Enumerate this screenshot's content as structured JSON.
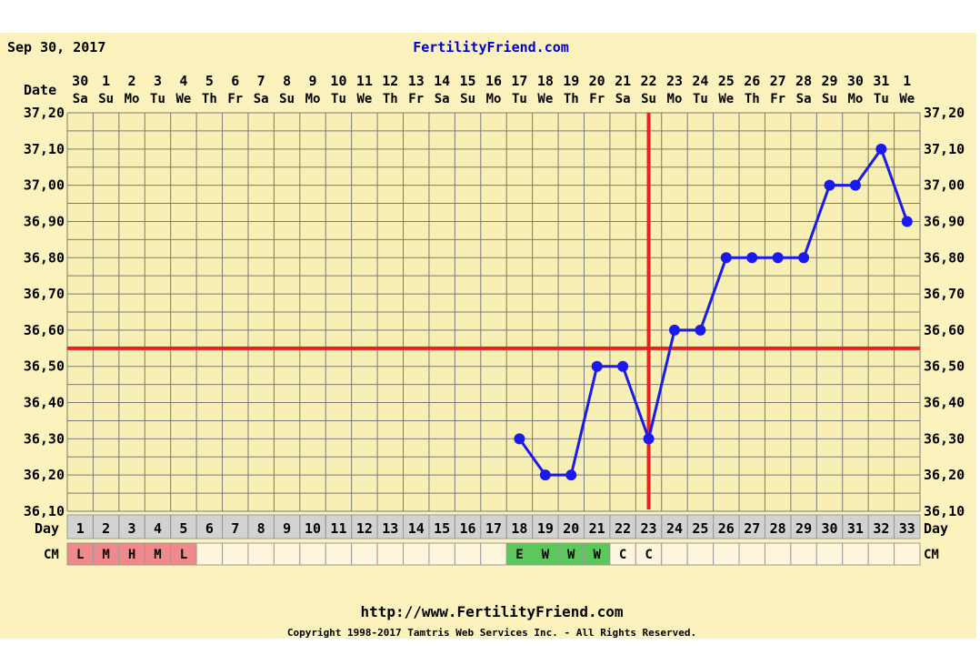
{
  "header": {
    "date": "Sep 30, 2017",
    "site_title": "FertilityFriend.com"
  },
  "footer": {
    "url": "http://www.FertilityFriend.com",
    "copyright": "Copyright 1998-2017 Tamtris Web Services Inc. - All Rights Reserved."
  },
  "row_labels": {
    "date": "Date",
    "day": "Day",
    "cm": "CM"
  },
  "colors": {
    "background": "#fbf2bd",
    "plot_background": "#f7efb3",
    "grid": "#7a7a7a",
    "series": "#1a1aee",
    "coverline": "#e8231e",
    "day_row": "#d2d2d2",
    "cm_empty": "#fdf6dc",
    "cm_period": "#f08a8a",
    "cm_wet": "#5cc85c"
  },
  "chart_data": {
    "type": "line",
    "dates": [
      "30",
      "1",
      "2",
      "3",
      "4",
      "5",
      "6",
      "7",
      "8",
      "9",
      "10",
      "11",
      "12",
      "13",
      "14",
      "15",
      "16",
      "17",
      "18",
      "19",
      "20",
      "21",
      "22",
      "23",
      "24",
      "25",
      "26",
      "27",
      "28",
      "29",
      "30",
      "31",
      "1"
    ],
    "weekdays": [
      "Sa",
      "Su",
      "Mo",
      "Tu",
      "We",
      "Th",
      "Fr",
      "Sa",
      "Su",
      "Mo",
      "Tu",
      "We",
      "Th",
      "Fr",
      "Sa",
      "Su",
      "Mo",
      "Tu",
      "We",
      "Th",
      "Fr",
      "Sa",
      "Su",
      "Mo",
      "Tu",
      "We",
      "Th",
      "Fr",
      "Sa",
      "Su",
      "Mo",
      "Tu",
      "We"
    ],
    "days": [
      1,
      2,
      3,
      4,
      5,
      6,
      7,
      8,
      9,
      10,
      11,
      12,
      13,
      14,
      15,
      16,
      17,
      18,
      19,
      20,
      21,
      22,
      23,
      24,
      25,
      26,
      27,
      28,
      29,
      30,
      31,
      32,
      33
    ],
    "y_ticks": [
      "37,20",
      "37,10",
      "37,00",
      "36,90",
      "36,80",
      "36,70",
      "36,60",
      "36,50",
      "36,40",
      "36,30",
      "36,20",
      "36,10"
    ],
    "ylim": [
      36.1,
      37.2
    ],
    "temperatures": [
      {
        "day": 18,
        "value": 36.3
      },
      {
        "day": 19,
        "value": 36.2
      },
      {
        "day": 20,
        "value": 36.2
      },
      {
        "day": 21,
        "value": 36.5
      },
      {
        "day": 22,
        "value": 36.5
      },
      {
        "day": 23,
        "value": 36.3
      },
      {
        "day": 24,
        "value": 36.6
      },
      {
        "day": 25,
        "value": 36.6
      },
      {
        "day": 26,
        "value": 36.8
      },
      {
        "day": 27,
        "value": 36.8
      },
      {
        "day": 28,
        "value": 36.8
      },
      {
        "day": 29,
        "value": 36.8
      },
      {
        "day": 30,
        "value": 37.0
      },
      {
        "day": 31,
        "value": 37.0
      },
      {
        "day": 32,
        "value": 37.1
      },
      {
        "day": 33,
        "value": 36.9
      }
    ],
    "coverline": 36.55,
    "ovulation_day": 23,
    "cervical_mucus": [
      {
        "day": 1,
        "code": "L",
        "kind": "period"
      },
      {
        "day": 2,
        "code": "M",
        "kind": "period"
      },
      {
        "day": 3,
        "code": "H",
        "kind": "period"
      },
      {
        "day": 4,
        "code": "M",
        "kind": "period"
      },
      {
        "day": 5,
        "code": "L",
        "kind": "period"
      },
      {
        "day": 18,
        "code": "E",
        "kind": "wet"
      },
      {
        "day": 19,
        "code": "W",
        "kind": "wet"
      },
      {
        "day": 20,
        "code": "W",
        "kind": "wet"
      },
      {
        "day": 21,
        "code": "W",
        "kind": "wet"
      },
      {
        "day": 22,
        "code": "C",
        "kind": "plain"
      },
      {
        "day": 23,
        "code": "C",
        "kind": "plain"
      }
    ]
  }
}
